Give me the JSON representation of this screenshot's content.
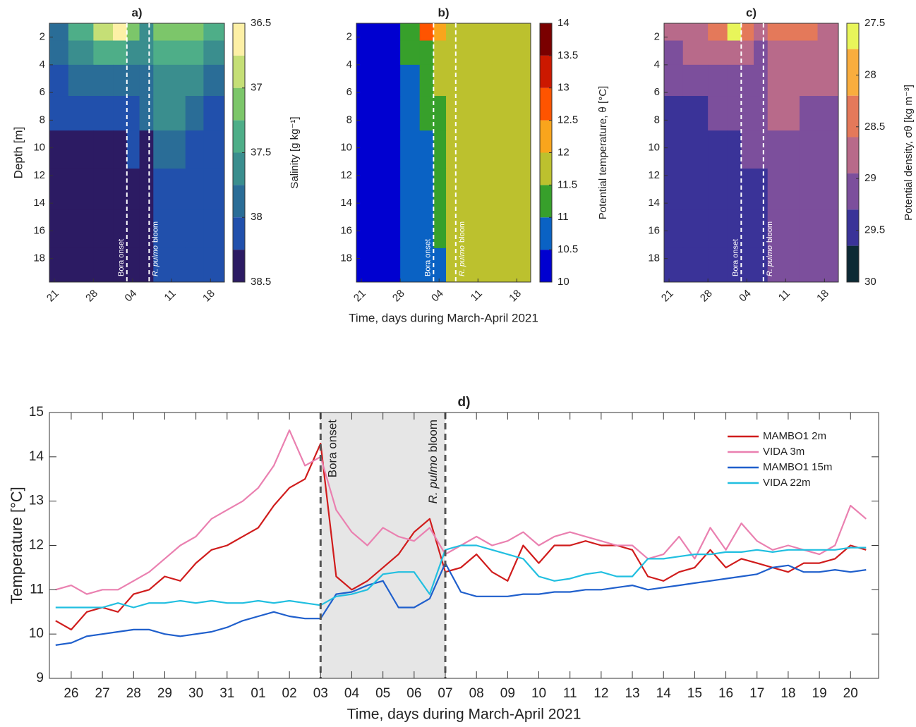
{
  "chart_data": [
    {
      "type": "contour",
      "title": "a)",
      "ylabel": "Depth [m]",
      "xlim": [
        -0.9,
        30.5
      ],
      "xticks": [
        {
          "value": 0,
          "label": "21"
        },
        {
          "value": 7,
          "label": "28"
        },
        {
          "value": 14,
          "label": "04"
        },
        {
          "value": 21,
          "label": "11"
        },
        {
          "value": 28,
          "label": "18"
        }
      ],
      "ylim": [
        1,
        19.7
      ],
      "yticks": [
        2,
        4,
        6,
        8,
        10,
        12,
        14,
        16,
        18
      ],
      "yreversed": true,
      "x": [
        0,
        5,
        9,
        12,
        14,
        16.5,
        19,
        22,
        25,
        28.5
      ],
      "y": [
        1.5,
        3,
        5,
        7.5,
        10,
        13,
        16,
        18.5
      ],
      "z": [
        [
          37.8,
          37.4,
          36.9,
          36.6,
          37.0,
          37.6,
          37.2,
          37.0,
          37.1,
          37.4
        ],
        [
          37.9,
          37.7,
          37.4,
          37.3,
          37.6,
          37.7,
          37.4,
          37.3,
          37.4,
          37.6
        ],
        [
          38.1,
          37.9,
          37.9,
          37.9,
          37.8,
          37.8,
          37.6,
          37.5,
          37.6,
          37.8
        ],
        [
          38.2,
          38.1,
          38.0,
          38.1,
          38.0,
          37.9,
          37.7,
          37.7,
          37.9,
          38.0
        ],
        [
          38.4,
          38.4,
          38.3,
          38.3,
          38.2,
          38.3,
          37.8,
          37.9,
          38.1,
          38.1
        ],
        [
          38.4,
          38.4,
          38.4,
          38.4,
          38.3,
          38.4,
          38.1,
          38.0,
          38.1,
          38.1
        ],
        [
          38.4,
          38.4,
          38.4,
          38.4,
          38.4,
          38.4,
          38.2,
          38.1,
          38.1,
          38.1
        ],
        [
          38.4,
          38.4,
          38.4,
          38.4,
          38.4,
          38.4,
          38.2,
          38.1,
          38.1,
          38.1
        ]
      ],
      "colorbar": {
        "label": "Salinity [g kg⁻¹]",
        "lim": [
          36.5,
          38.5
        ],
        "reversed": true,
        "ticks": [
          36.5,
          37,
          37.5,
          38,
          38.5
        ],
        "levels": [
          36.5,
          36.75,
          37,
          37.25,
          37.5,
          37.75,
          38,
          38.25,
          38.5
        ],
        "colors": [
          "#fdf0a6",
          "#c5df76",
          "#7cc66a",
          "#4eae88",
          "#3a8e8e",
          "#2a6d97",
          "#2150ac",
          "#2c1b63"
        ]
      },
      "annotations": [
        {
          "x": 13,
          "label": "Bora onset"
        },
        {
          "x": 17,
          "label_italic": "R. pulmo",
          "label": "bloom"
        }
      ]
    },
    {
      "type": "contour",
      "title": "b)",
      "xlabel": "Time, days during March-April 2021",
      "xlim": [
        -0.9,
        30.5
      ],
      "xticks": [
        {
          "value": 0,
          "label": "21"
        },
        {
          "value": 7,
          "label": "28"
        },
        {
          "value": 14,
          "label": "04"
        },
        {
          "value": 21,
          "label": "11"
        },
        {
          "value": 28,
          "label": "18"
        }
      ],
      "ylim": [
        1,
        19.7
      ],
      "yticks": [
        2,
        4,
        6,
        8,
        10,
        12,
        14,
        16,
        18
      ],
      "yreversed": true,
      "x": [
        0,
        5,
        9,
        12,
        14,
        16.5,
        19,
        22,
        25,
        28.5
      ],
      "y": [
        1.5,
        3,
        5,
        7.5,
        10,
        13,
        16,
        18.5
      ],
      "z": [
        [
          10.3,
          10.4,
          11.2,
          12.8,
          12.2,
          11.8,
          11.8,
          11.8,
          11.8,
          11.9
        ],
        [
          10.3,
          10.4,
          11.1,
          11.3,
          11.8,
          11.8,
          11.8,
          11.8,
          11.8,
          11.8
        ],
        [
          10.3,
          10.4,
          10.8,
          11.2,
          11.6,
          11.8,
          11.8,
          11.8,
          11.8,
          11.8
        ],
        [
          10.3,
          10.4,
          10.7,
          11.1,
          11.4,
          11.8,
          11.8,
          11.8,
          11.8,
          11.8
        ],
        [
          10.3,
          10.4,
          10.7,
          10.8,
          11.3,
          11.8,
          11.8,
          11.8,
          11.8,
          11.8
        ],
        [
          10.3,
          10.4,
          10.7,
          10.7,
          11.2,
          11.6,
          11.8,
          11.8,
          11.8,
          11.8
        ],
        [
          10.3,
          10.4,
          10.7,
          10.7,
          11.1,
          11.6,
          11.8,
          11.8,
          11.8,
          11.8
        ],
        [
          10.3,
          10.4,
          10.6,
          10.7,
          10.8,
          11.6,
          11.8,
          11.8,
          11.8,
          11.8
        ]
      ],
      "colorbar": {
        "label": "Potential temperature, θ [°C]",
        "lim": [
          10,
          14
        ],
        "reversed": false,
        "ticks": [
          10,
          10.5,
          11,
          11.5,
          12,
          12.5,
          13,
          13.5,
          14
        ],
        "levels": [
          10,
          10.5,
          11,
          11.5,
          12,
          12.5,
          13,
          13.5,
          14
        ],
        "colors": [
          "#0000d0",
          "#0a62c4",
          "#37a02b",
          "#bcc12e",
          "#f9a51c",
          "#ff5400",
          "#cc1800",
          "#7a0000"
        ]
      },
      "annotations": [
        {
          "x": 13,
          "label": "Bora onset"
        },
        {
          "x": 17,
          "label_italic": "R. pulmo",
          "label": "bloom"
        }
      ]
    },
    {
      "type": "contour",
      "title": "c)",
      "xlim": [
        -0.9,
        30.5
      ],
      "xticks": [
        {
          "value": 0,
          "label": "21"
        },
        {
          "value": 7,
          "label": "28"
        },
        {
          "value": 14,
          "label": "04"
        },
        {
          "value": 21,
          "label": "11"
        },
        {
          "value": 28,
          "label": "18"
        }
      ],
      "ylim": [
        1,
        19.7
      ],
      "yticks": [
        2,
        4,
        6,
        8,
        10,
        12,
        14,
        16,
        18
      ],
      "yreversed": true,
      "x": [
        0,
        5,
        9,
        12,
        14,
        16.5,
        19,
        22,
        25,
        28.5
      ],
      "y": [
        1.5,
        3,
        5,
        7.5,
        10,
        13,
        16,
        18.5
      ],
      "z": [
        [
          28.9,
          28.6,
          28.2,
          27.6,
          28.3,
          28.9,
          28.4,
          28.5,
          28.5,
          28.6
        ],
        [
          29.0,
          28.9,
          28.7,
          28.6,
          28.8,
          29.0,
          28.7,
          28.6,
          28.6,
          28.7
        ],
        [
          29.2,
          29.1,
          29.0,
          29.0,
          29.0,
          29.1,
          28.8,
          28.7,
          28.8,
          28.9
        ],
        [
          29.4,
          29.3,
          29.2,
          29.2,
          29.1,
          29.1,
          28.9,
          28.9,
          29.0,
          29.1
        ],
        [
          29.5,
          29.5,
          29.5,
          29.4,
          29.2,
          29.2,
          29.0,
          29.1,
          29.1,
          29.2
        ],
        [
          29.5,
          29.5,
          29.5,
          29.5,
          29.3,
          29.4,
          29.2,
          29.1,
          29.2,
          29.2
        ],
        [
          29.5,
          29.5,
          29.5,
          29.5,
          29.4,
          29.4,
          29.2,
          29.2,
          29.2,
          29.2
        ],
        [
          29.5,
          29.5,
          29.5,
          29.5,
          29.4,
          29.5,
          29.2,
          29.2,
          29.2,
          29.2
        ]
      ],
      "colorbar": {
        "label": "Potential density, σθ [kg m⁻³]",
        "lim": [
          27.5,
          30
        ],
        "reversed": true,
        "ticks": [
          27.5,
          28,
          28.5,
          29,
          29.5,
          30
        ],
        "levels": [
          27.5,
          27.75,
          28.2,
          28.6,
          28.95,
          29.3,
          29.65,
          30
        ],
        "colors": [
          "#e8f55a",
          "#f9ad3e",
          "#e4795a",
          "#b86a8a",
          "#7c4f9c",
          "#3a3398",
          "#0c2a35"
        ]
      },
      "annotations": [
        {
          "x": 13,
          "label": "Bora onset"
        },
        {
          "x": 17,
          "label_italic": "R. pulmo",
          "label": "bloom"
        }
      ]
    },
    {
      "type": "line",
      "title": "d)",
      "xlabel": "Time, days during March-April 2021",
      "ylabel": "Temperature [°C]",
      "xlim": [
        -0.7,
        25.9
      ],
      "xticks": [
        {
          "value": 0,
          "label": "26"
        },
        {
          "value": 1,
          "label": "27"
        },
        {
          "value": 2,
          "label": "28"
        },
        {
          "value": 3,
          "label": "29"
        },
        {
          "value": 4,
          "label": "30"
        },
        {
          "value": 5,
          "label": "31"
        },
        {
          "value": 6,
          "label": "01"
        },
        {
          "value": 7,
          "label": "02"
        },
        {
          "value": 8,
          "label": "03"
        },
        {
          "value": 9,
          "label": "04"
        },
        {
          "value": 10,
          "label": "05"
        },
        {
          "value": 11,
          "label": "06"
        },
        {
          "value": 12,
          "label": "07"
        },
        {
          "value": 13,
          "label": "08"
        },
        {
          "value": 14,
          "label": "09"
        },
        {
          "value": 15,
          "label": "10"
        },
        {
          "value": 16,
          "label": "11"
        },
        {
          "value": 17,
          "label": "12"
        },
        {
          "value": 18,
          "label": "13"
        },
        {
          "value": 19,
          "label": "14"
        },
        {
          "value": 20,
          "label": "15"
        },
        {
          "value": 21,
          "label": "16"
        },
        {
          "value": 22,
          "label": "17"
        },
        {
          "value": 23,
          "label": "18"
        },
        {
          "value": 24,
          "label": "19"
        },
        {
          "value": 25,
          "label": "20"
        }
      ],
      "ylim": [
        9,
        15
      ],
      "yticks": [
        9,
        10,
        11,
        12,
        13,
        14,
        15
      ],
      "legend": "upper right",
      "annotations": [
        {
          "x": 8,
          "label": "Bora onset"
        },
        {
          "x": 12,
          "label_italic": "R. pulmo",
          "label": "bloom"
        }
      ],
      "shade_color": "#e6e6e6",
      "x": [
        -0.5,
        0,
        0.5,
        1,
        1.5,
        2,
        2.5,
        3,
        3.5,
        4,
        4.5,
        5,
        5.5,
        6,
        6.5,
        7,
        7.5,
        8,
        8.5,
        9,
        9.5,
        10,
        10.5,
        11,
        11.5,
        12,
        12.5,
        13,
        13.5,
        14,
        14.5,
        15,
        15.5,
        16,
        16.5,
        17,
        17.5,
        18,
        18.5,
        19,
        19.5,
        20,
        20.5,
        21,
        21.5,
        22,
        22.5,
        23,
        23.5,
        24,
        24.5,
        25,
        25.5
      ],
      "series": [
        {
          "name": "MAMBO1 2m",
          "color": "#d01c1c",
          "values": [
            10.3,
            10.1,
            10.5,
            10.6,
            10.5,
            10.9,
            11.0,
            11.3,
            11.2,
            11.6,
            11.9,
            12.0,
            12.2,
            12.4,
            12.9,
            13.3,
            13.5,
            14.3,
            11.3,
            11.0,
            11.2,
            11.5,
            11.8,
            12.3,
            12.6,
            11.4,
            11.5,
            11.8,
            11.4,
            11.2,
            12.0,
            11.6,
            12.0,
            12.0,
            12.1,
            12.0,
            12.0,
            11.9,
            11.3,
            11.2,
            11.4,
            11.5,
            11.9,
            11.5,
            11.7,
            11.6,
            11.5,
            11.4,
            11.6,
            11.6,
            11.7,
            12.0,
            11.9
          ]
        },
        {
          "name": "VIDA 3m",
          "color": "#ea80b0",
          "values": [
            11.0,
            11.1,
            10.9,
            11.0,
            11.0,
            11.2,
            11.4,
            11.7,
            12.0,
            12.2,
            12.6,
            12.8,
            13.0,
            13.3,
            13.8,
            14.6,
            13.8,
            14.0,
            12.8,
            12.3,
            12.0,
            12.4,
            12.2,
            12.1,
            12.4,
            11.8,
            12.0,
            12.2,
            12.0,
            12.1,
            12.3,
            12.0,
            12.2,
            12.3,
            12.2,
            12.1,
            12.0,
            12.0,
            11.7,
            11.8,
            12.2,
            11.7,
            12.4,
            11.9,
            12.5,
            12.1,
            11.9,
            12.0,
            11.9,
            11.8,
            12.0,
            12.9,
            12.6
          ]
        },
        {
          "name": "MAMBO1 15m",
          "color": "#1f5fcc",
          "values": [
            9.75,
            9.8,
            9.95,
            10.0,
            10.05,
            10.1,
            10.1,
            10.0,
            9.95,
            10.0,
            10.05,
            10.15,
            10.3,
            10.4,
            10.5,
            10.4,
            10.35,
            10.35,
            10.9,
            10.95,
            11.1,
            11.2,
            10.6,
            10.6,
            10.8,
            11.6,
            10.95,
            10.85,
            10.85,
            10.85,
            10.9,
            10.9,
            10.95,
            10.95,
            11.0,
            11.0,
            11.05,
            11.1,
            11.0,
            11.05,
            11.1,
            11.15,
            11.2,
            11.25,
            11.3,
            11.35,
            11.5,
            11.55,
            11.4,
            11.4,
            11.45,
            11.4,
            11.45
          ]
        },
        {
          "name": "VIDA 22m",
          "color": "#21bfe0",
          "values": [
            10.6,
            10.6,
            10.6,
            10.6,
            10.7,
            10.6,
            10.7,
            10.7,
            10.75,
            10.7,
            10.75,
            10.7,
            10.7,
            10.75,
            10.7,
            10.75,
            10.7,
            10.65,
            10.85,
            10.9,
            11.0,
            11.35,
            11.4,
            11.4,
            10.9,
            11.9,
            12.0,
            12.0,
            11.9,
            11.8,
            11.7,
            11.3,
            11.2,
            11.25,
            11.35,
            11.4,
            11.3,
            11.3,
            11.7,
            11.7,
            11.75,
            11.8,
            11.8,
            11.85,
            11.85,
            11.9,
            11.85,
            11.9,
            11.9,
            11.9,
            11.9,
            11.95,
            11.95
          ]
        }
      ]
    }
  ]
}
